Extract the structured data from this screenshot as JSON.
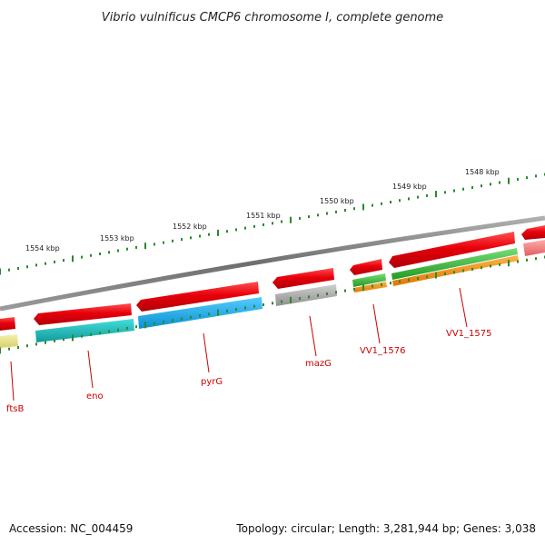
{
  "title": "Vibrio vulnificus CMCP6 chromosome I, complete genome",
  "kbp_labels": [
    "1548 kbp",
    "1549 kbp",
    "1550 kbp",
    "1551 kbp",
    "1552 kbp",
    "1553 kbp",
    "1554 kbp"
  ],
  "genes": [
    {
      "label": "VV1_1575",
      "strand_colors": [
        "#e8000a",
        "#33bb33",
        "#ff8c00"
      ]
    },
    {
      "label": "VV1_1576",
      "strand_colors": [
        "#e8000a",
        "#33bb33",
        "#ff8c00"
      ]
    },
    {
      "label": "mazG",
      "strand_colors": [
        "#e8000a",
        "#a9a9a9"
      ]
    },
    {
      "label": "pyrG",
      "strand_colors": [
        "#e8000a",
        "#1ab0ee"
      ]
    },
    {
      "label": "eno",
      "strand_colors": [
        "#e8000a",
        "#22bbbb"
      ]
    },
    {
      "label": "ftsB",
      "strand_colors": [
        "#e8000a",
        "#e8e08a"
      ]
    }
  ],
  "colors": {
    "backbone": "#7a7a7a",
    "tick": "#2a8a2a",
    "label": "#cc0000",
    "partial_gene_right": "#f07878"
  },
  "footer": {
    "accession": "Accession: NC_004459",
    "summary": "Topology: circular; Length: 3,281,944 bp; Genes: 3,038"
  }
}
